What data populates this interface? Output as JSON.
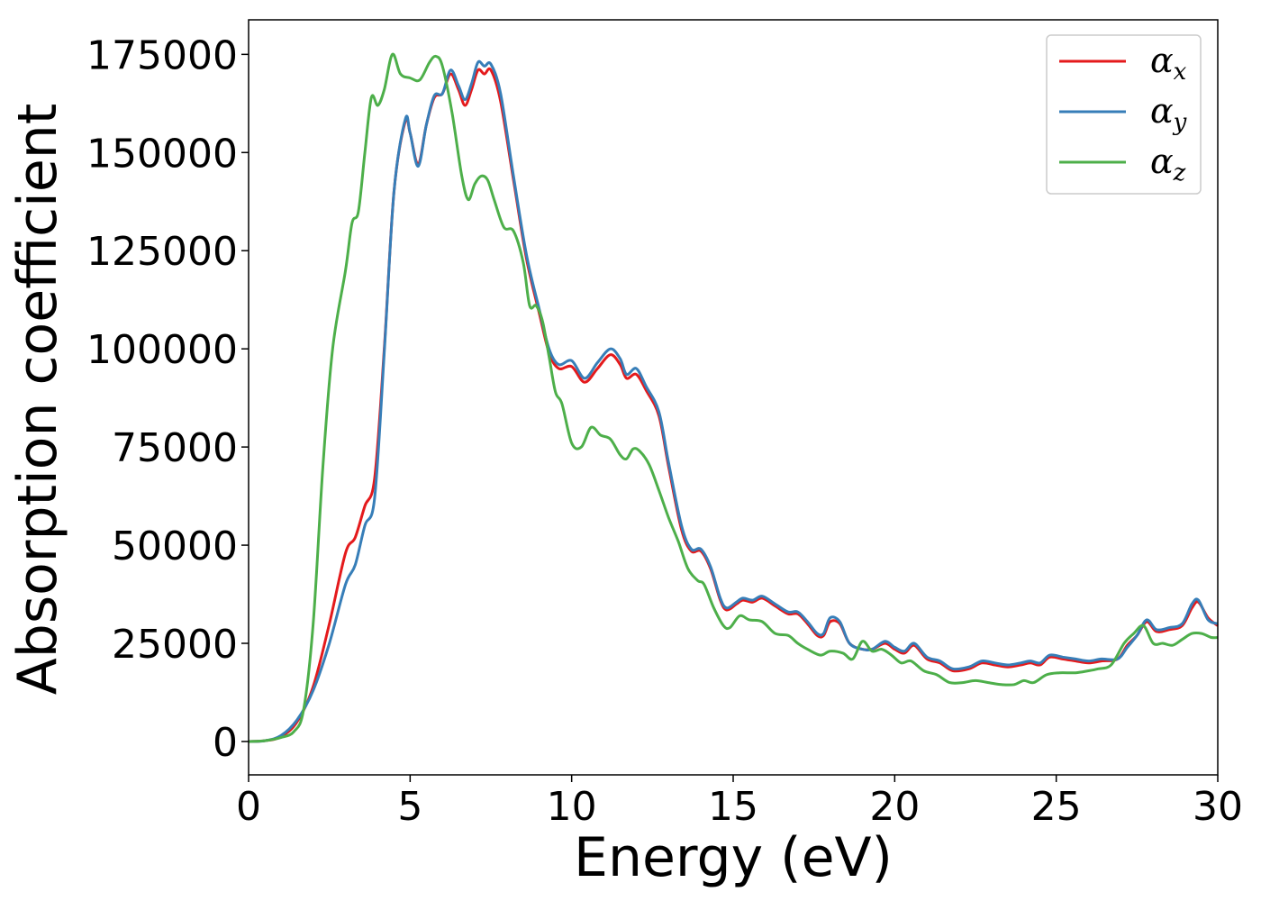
{
  "chart_data": {
    "type": "line",
    "xlabel": "Energy (eV)",
    "ylabel": "Absorption coefficient",
    "xlim": [
      0,
      30
    ],
    "ylim": [
      -8500,
      183800
    ],
    "x_ticks": [
      0,
      5,
      10,
      15,
      20,
      25,
      30
    ],
    "y_ticks": [
      0,
      25000,
      50000,
      75000,
      100000,
      125000,
      150000,
      175000
    ],
    "grid": false,
    "legend_position": "top-right",
    "series": [
      {
        "name": "αx",
        "symbol": "α",
        "subscript": "x",
        "color": "#e41a1c",
        "points": [
          [
            0,
            0
          ],
          [
            0.5,
            200
          ],
          [
            1.0,
            1200
          ],
          [
            1.5,
            5000
          ],
          [
            2.0,
            14000
          ],
          [
            2.5,
            30000
          ],
          [
            3.0,
            48000
          ],
          [
            3.3,
            52000
          ],
          [
            3.6,
            60000
          ],
          [
            3.9,
            67000
          ],
          [
            4.2,
            100000
          ],
          [
            4.5,
            140000
          ],
          [
            4.85,
            158000
          ],
          [
            5.0,
            155000
          ],
          [
            5.25,
            147000
          ],
          [
            5.5,
            157000
          ],
          [
            5.75,
            164000
          ],
          [
            6.0,
            165000
          ],
          [
            6.25,
            170000
          ],
          [
            6.5,
            166000
          ],
          [
            6.7,
            162000
          ],
          [
            6.9,
            166000
          ],
          [
            7.1,
            171000
          ],
          [
            7.3,
            170000
          ],
          [
            7.5,
            171000
          ],
          [
            7.8,
            163000
          ],
          [
            8.2,
            143000
          ],
          [
            8.6,
            123000
          ],
          [
            9.0,
            109000
          ],
          [
            9.3,
            99000
          ],
          [
            9.6,
            95000
          ],
          [
            10.0,
            95500
          ],
          [
            10.4,
            91500
          ],
          [
            10.8,
            95000
          ],
          [
            11.2,
            98500
          ],
          [
            11.5,
            96000
          ],
          [
            11.7,
            92500
          ],
          [
            12.0,
            93500
          ],
          [
            12.3,
            89500
          ],
          [
            12.7,
            83000
          ],
          [
            13.0,
            70000
          ],
          [
            13.4,
            54000
          ],
          [
            13.7,
            48500
          ],
          [
            14.0,
            48500
          ],
          [
            14.3,
            44000
          ],
          [
            14.6,
            36000
          ],
          [
            14.8,
            33500
          ],
          [
            15.1,
            35000
          ],
          [
            15.3,
            36000
          ],
          [
            15.6,
            35500
          ],
          [
            15.9,
            36500
          ],
          [
            16.3,
            34500
          ],
          [
            16.7,
            32500
          ],
          [
            17.0,
            32500
          ],
          [
            17.3,
            30000
          ],
          [
            17.6,
            27000
          ],
          [
            17.8,
            27000
          ],
          [
            18.0,
            30500
          ],
          [
            18.3,
            30000
          ],
          [
            18.6,
            25000
          ],
          [
            19.0,
            23500
          ],
          [
            19.3,
            23500
          ],
          [
            19.7,
            25000
          ],
          [
            20.0,
            23500
          ],
          [
            20.3,
            22500
          ],
          [
            20.6,
            24500
          ],
          [
            21.0,
            21000
          ],
          [
            21.4,
            20000
          ],
          [
            21.8,
            18000
          ],
          [
            22.3,
            18500
          ],
          [
            22.7,
            20000
          ],
          [
            23.1,
            19500
          ],
          [
            23.5,
            19000
          ],
          [
            23.9,
            19500
          ],
          [
            24.2,
            20000
          ],
          [
            24.5,
            19500
          ],
          [
            24.8,
            21500
          ],
          [
            25.2,
            21000
          ],
          [
            25.6,
            20500
          ],
          [
            26.0,
            20000
          ],
          [
            26.4,
            20500
          ],
          [
            26.9,
            21000
          ],
          [
            27.2,
            24500
          ],
          [
            27.5,
            27000
          ],
          [
            27.8,
            30500
          ],
          [
            28.1,
            28000
          ],
          [
            28.5,
            28500
          ],
          [
            28.9,
            29500
          ],
          [
            29.2,
            34000
          ],
          [
            29.4,
            35500
          ],
          [
            29.7,
            31500
          ],
          [
            30.0,
            29500
          ]
        ]
      },
      {
        "name": "αy",
        "symbol": "α",
        "subscript": "y",
        "color": "#377eb8",
        "points": [
          [
            0,
            0
          ],
          [
            0.5,
            200
          ],
          [
            1.0,
            1500
          ],
          [
            1.5,
            5500
          ],
          [
            2.0,
            13000
          ],
          [
            2.5,
            25000
          ],
          [
            3.0,
            40000
          ],
          [
            3.3,
            45000
          ],
          [
            3.6,
            55000
          ],
          [
            3.9,
            62000
          ],
          [
            4.2,
            99000
          ],
          [
            4.5,
            140000
          ],
          [
            4.85,
            158500
          ],
          [
            5.0,
            155000
          ],
          [
            5.25,
            146500
          ],
          [
            5.5,
            157000
          ],
          [
            5.75,
            164500
          ],
          [
            6.0,
            165000
          ],
          [
            6.25,
            171000
          ],
          [
            6.5,
            167000
          ],
          [
            6.7,
            163500
          ],
          [
            6.9,
            167500
          ],
          [
            7.1,
            173000
          ],
          [
            7.3,
            172000
          ],
          [
            7.5,
            172500
          ],
          [
            7.8,
            165000
          ],
          [
            8.2,
            144000
          ],
          [
            8.6,
            124000
          ],
          [
            9.0,
            110000
          ],
          [
            9.3,
            100000
          ],
          [
            9.6,
            96000
          ],
          [
            10.0,
            97000
          ],
          [
            10.4,
            92500
          ],
          [
            10.8,
            96500
          ],
          [
            11.2,
            100000
          ],
          [
            11.5,
            97500
          ],
          [
            11.7,
            93500
          ],
          [
            12.0,
            95000
          ],
          [
            12.3,
            90500
          ],
          [
            12.7,
            84000
          ],
          [
            13.0,
            71000
          ],
          [
            13.4,
            55000
          ],
          [
            13.7,
            49000
          ],
          [
            14.0,
            49000
          ],
          [
            14.3,
            44500
          ],
          [
            14.6,
            36500
          ],
          [
            14.8,
            34000
          ],
          [
            15.1,
            35500
          ],
          [
            15.3,
            36500
          ],
          [
            15.6,
            36000
          ],
          [
            15.9,
            37000
          ],
          [
            16.3,
            35000
          ],
          [
            16.7,
            33000
          ],
          [
            17.0,
            33000
          ],
          [
            17.3,
            30500
          ],
          [
            17.6,
            27500
          ],
          [
            17.8,
            27500
          ],
          [
            18.0,
            31500
          ],
          [
            18.3,
            30500
          ],
          [
            18.6,
            25000
          ],
          [
            19.0,
            23500
          ],
          [
            19.3,
            23500
          ],
          [
            19.7,
            25500
          ],
          [
            20.0,
            24000
          ],
          [
            20.3,
            23000
          ],
          [
            20.6,
            25000
          ],
          [
            21.0,
            21500
          ],
          [
            21.4,
            20500
          ],
          [
            21.8,
            18500
          ],
          [
            22.3,
            19000
          ],
          [
            22.7,
            20500
          ],
          [
            23.1,
            20000
          ],
          [
            23.5,
            19500
          ],
          [
            23.9,
            20000
          ],
          [
            24.2,
            20500
          ],
          [
            24.5,
            20000
          ],
          [
            24.8,
            22000
          ],
          [
            25.2,
            21500
          ],
          [
            25.6,
            21000
          ],
          [
            26.0,
            20500
          ],
          [
            26.4,
            21000
          ],
          [
            26.9,
            21000
          ],
          [
            27.2,
            24000
          ],
          [
            27.5,
            27000
          ],
          [
            27.8,
            31000
          ],
          [
            28.1,
            28500
          ],
          [
            28.5,
            29000
          ],
          [
            28.9,
            30000
          ],
          [
            29.2,
            35000
          ],
          [
            29.4,
            36000
          ],
          [
            29.7,
            31000
          ],
          [
            30.0,
            30000
          ]
        ]
      },
      {
        "name": "αz",
        "symbol": "α",
        "subscript": "z",
        "color": "#4daf4a",
        "points": [
          [
            0,
            0
          ],
          [
            0.5,
            200
          ],
          [
            1.0,
            1000
          ],
          [
            1.4,
            2500
          ],
          [
            1.7,
            8000
          ],
          [
            2.0,
            30000
          ],
          [
            2.3,
            70000
          ],
          [
            2.6,
            100000
          ],
          [
            3.0,
            120000
          ],
          [
            3.2,
            132000
          ],
          [
            3.4,
            135000
          ],
          [
            3.6,
            150000
          ],
          [
            3.8,
            164000
          ],
          [
            4.0,
            162000
          ],
          [
            4.2,
            166000
          ],
          [
            4.45,
            175000
          ],
          [
            4.7,
            170000
          ],
          [
            5.0,
            169000
          ],
          [
            5.3,
            168500
          ],
          [
            5.6,
            173000
          ],
          [
            5.8,
            174500
          ],
          [
            6.0,
            172000
          ],
          [
            6.3,
            160000
          ],
          [
            6.6,
            144000
          ],
          [
            6.8,
            138000
          ],
          [
            7.0,
            142000
          ],
          [
            7.2,
            144000
          ],
          [
            7.4,
            143000
          ],
          [
            7.6,
            138000
          ],
          [
            7.9,
            131000
          ],
          [
            8.2,
            130000
          ],
          [
            8.5,
            122000
          ],
          [
            8.7,
            111000
          ],
          [
            8.9,
            111000
          ],
          [
            9.1,
            107000
          ],
          [
            9.3,
            98000
          ],
          [
            9.5,
            89000
          ],
          [
            9.7,
            86000
          ],
          [
            10.0,
            76000
          ],
          [
            10.3,
            75000
          ],
          [
            10.6,
            80000
          ],
          [
            10.9,
            78000
          ],
          [
            11.2,
            77000
          ],
          [
            11.5,
            73000
          ],
          [
            11.7,
            72000
          ],
          [
            11.9,
            74500
          ],
          [
            12.1,
            74000
          ],
          [
            12.4,
            70500
          ],
          [
            12.7,
            64000
          ],
          [
            13.0,
            57000
          ],
          [
            13.3,
            51000
          ],
          [
            13.6,
            44000
          ],
          [
            13.9,
            41000
          ],
          [
            14.1,
            40000
          ],
          [
            14.4,
            34000
          ],
          [
            14.7,
            29500
          ],
          [
            14.9,
            29000
          ],
          [
            15.2,
            32000
          ],
          [
            15.5,
            31000
          ],
          [
            15.9,
            30500
          ],
          [
            16.3,
            27500
          ],
          [
            16.7,
            27000
          ],
          [
            17.0,
            25000
          ],
          [
            17.3,
            23500
          ],
          [
            17.7,
            22000
          ],
          [
            18.0,
            23000
          ],
          [
            18.4,
            22500
          ],
          [
            18.7,
            21000
          ],
          [
            19.0,
            25500
          ],
          [
            19.3,
            23000
          ],
          [
            19.6,
            23500
          ],
          [
            19.9,
            22000
          ],
          [
            20.2,
            20000
          ],
          [
            20.5,
            20500
          ],
          [
            20.9,
            18000
          ],
          [
            21.3,
            17000
          ],
          [
            21.7,
            15000
          ],
          [
            22.1,
            15000
          ],
          [
            22.5,
            15500
          ],
          [
            22.9,
            15000
          ],
          [
            23.3,
            14500
          ],
          [
            23.7,
            14500
          ],
          [
            24.0,
            15500
          ],
          [
            24.3,
            15000
          ],
          [
            24.7,
            17000
          ],
          [
            25.1,
            17500
          ],
          [
            25.6,
            17500
          ],
          [
            26.0,
            18000
          ],
          [
            26.3,
            18500
          ],
          [
            26.7,
            19500
          ],
          [
            27.1,
            25000
          ],
          [
            27.4,
            27500
          ],
          [
            27.7,
            29500
          ],
          [
            28.0,
            25000
          ],
          [
            28.3,
            25000
          ],
          [
            28.6,
            24500
          ],
          [
            28.9,
            26000
          ],
          [
            29.2,
            27500
          ],
          [
            29.5,
            27500
          ],
          [
            29.8,
            26500
          ],
          [
            30.0,
            26500
          ]
        ]
      }
    ]
  }
}
